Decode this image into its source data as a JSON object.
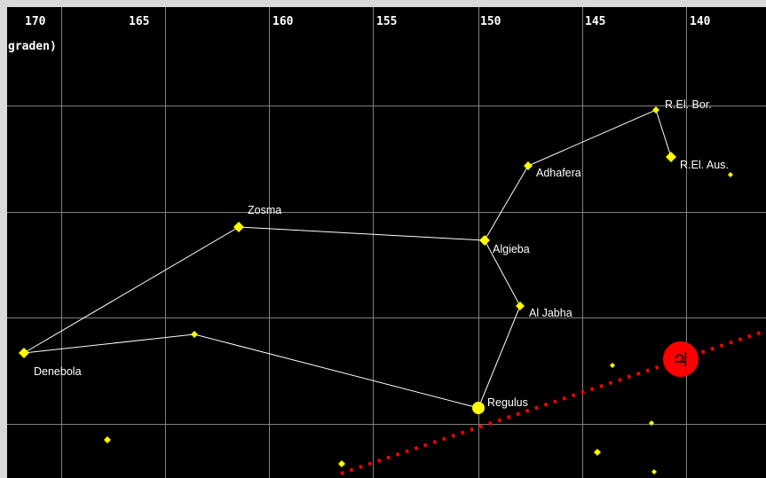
{
  "axis": {
    "unit_fragment": "graden)",
    "ticks": [
      "170",
      "165",
      "160",
      "155",
      "150",
      "145",
      "140"
    ]
  },
  "stars": {
    "denebola": "Denebola",
    "zosma": "Zosma",
    "algieba": "Algieba",
    "adhafera": "Adhafera",
    "rasalas": "R.El. Bor.",
    "rel_aus": "R.El. Aus.",
    "al_jabha": "Al Jabha",
    "regulus": "Regulus"
  },
  "planet": {
    "symbol": "♃"
  },
  "colors": {
    "background": "#000000",
    "grid": "#7f7f7f",
    "constellation_line": "#ffffff",
    "star": "#ffff00",
    "ecliptic": "#ff0000",
    "planet_fill": "#ff0000"
  }
}
